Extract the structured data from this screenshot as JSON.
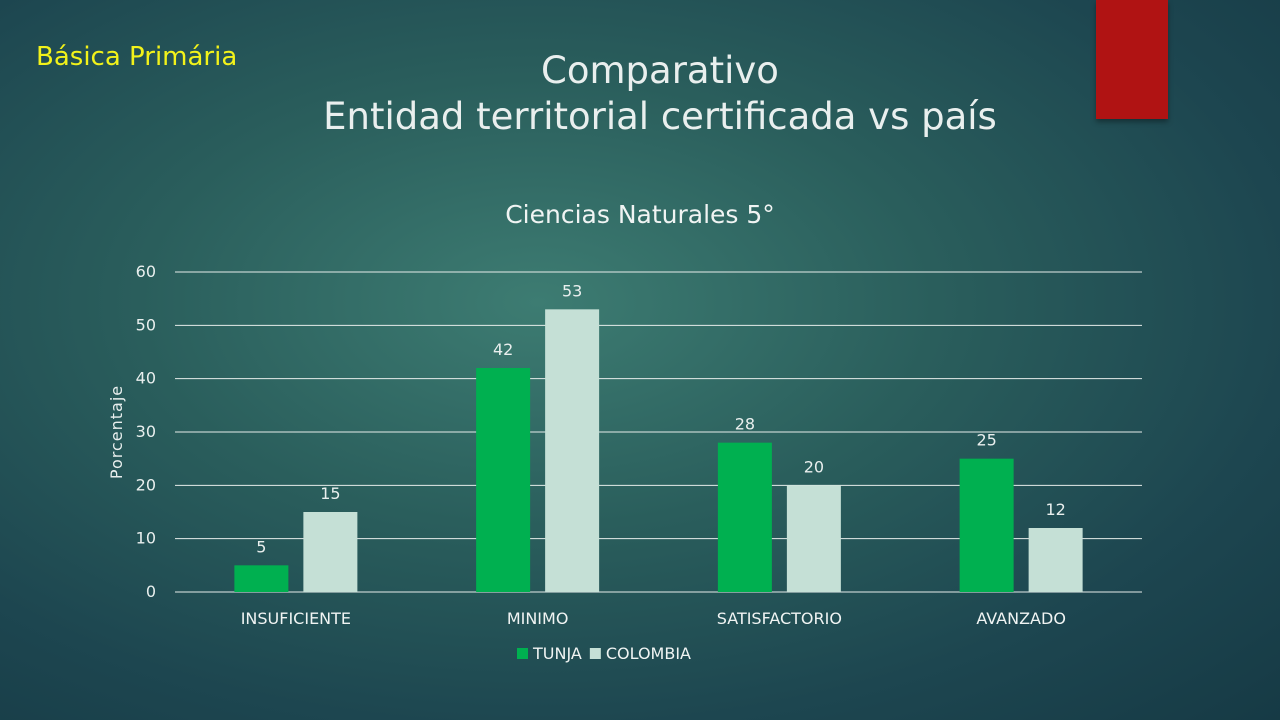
{
  "section_label": "Básica Primária",
  "slide_title": {
    "line1": "Comparativo",
    "line2": "Entidad territorial certificada vs país"
  },
  "colors": {
    "tunja": "#00b050",
    "colombia": "#c5e0d6",
    "accent": "#b01313",
    "section_label": "#f2f21a"
  },
  "chart_data": {
    "type": "bar",
    "title": "Ciencias Naturales 5°",
    "ylabel": "Porcentaje",
    "xlabel": "",
    "ylim": [
      0,
      60
    ],
    "yticks": [
      0,
      10,
      20,
      30,
      40,
      50,
      60
    ],
    "categories": [
      "INSUFICIENTE",
      "MINIMO",
      "SATISFACTORIO",
      "AVANZADO"
    ],
    "series": [
      {
        "name": "TUNJA",
        "values": [
          5,
          42,
          28,
          25
        ],
        "color": "#00b050"
      },
      {
        "name": "COLOMBIA",
        "values": [
          15,
          53,
          20,
          12
        ],
        "color": "#c5e0d6"
      }
    ],
    "grid": true,
    "legend_position": "bottom"
  }
}
